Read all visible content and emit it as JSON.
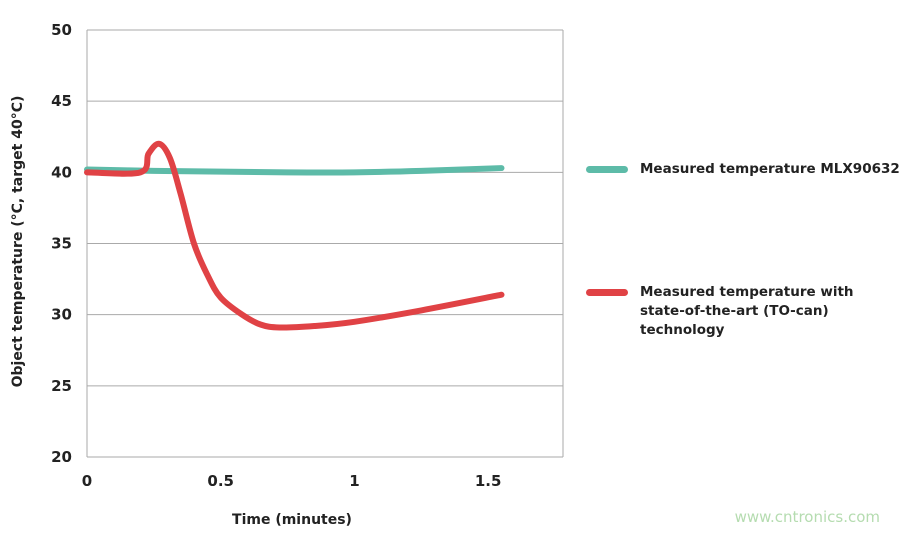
{
  "chart_data": {
    "type": "line",
    "title": "",
    "xlabel": "Time (minutes)",
    "ylabel": "Object temperature (°C, target 40°C)",
    "xlim": [
      0,
      1.78
    ],
    "ylim": [
      20,
      50
    ],
    "xticks": [
      0,
      0.5,
      1,
      1.5
    ],
    "xtick_labels": [
      "0",
      "0.5",
      "1",
      "1.5"
    ],
    "yticks": [
      20,
      25,
      30,
      35,
      40,
      45,
      50
    ],
    "ytick_labels": [
      "20",
      "25",
      "30",
      "35",
      "40",
      "45",
      "50"
    ],
    "grid": "horizontal",
    "legend_placement": "right",
    "series": [
      {
        "name": "Measured temperature MLX90632",
        "color": "#5dbba8",
        "x": [
          0,
          0.25,
          0.5,
          0.75,
          1.0,
          1.25,
          1.55
        ],
        "y": [
          40.2,
          40.1,
          40.05,
          40.0,
          40.0,
          40.1,
          40.3
        ]
      },
      {
        "name": "Measured temperature with state-of-the-art (TO-can) technology",
        "color": "#e04245",
        "x": [
          0,
          0.2,
          0.23,
          0.27,
          0.31,
          0.35,
          0.4,
          0.45,
          0.5,
          0.58,
          0.65,
          0.72,
          0.85,
          1.0,
          1.25,
          1.55
        ],
        "y": [
          40,
          40,
          41.3,
          42.0,
          41.0,
          38.5,
          35.0,
          32.8,
          31.2,
          30.0,
          29.3,
          29.1,
          29.2,
          29.5,
          30.3,
          31.4
        ]
      }
    ]
  },
  "watermark": "www.cntronics.com"
}
